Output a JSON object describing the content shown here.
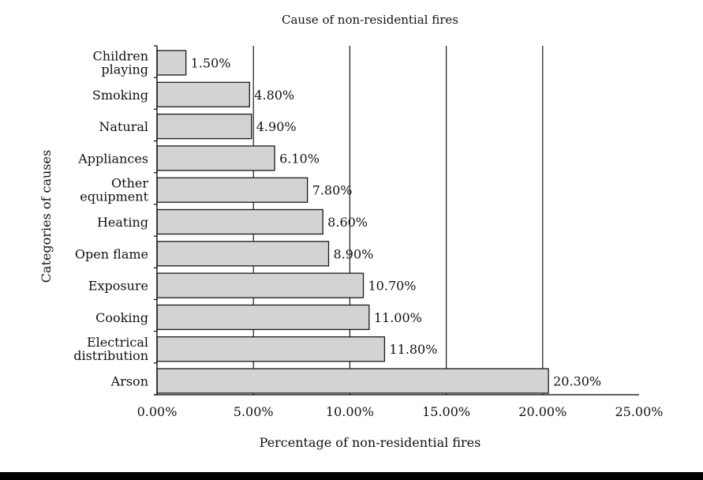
{
  "chart_data": {
    "type": "bar",
    "orientation": "horizontal",
    "title": "Cause of non-residential fires",
    "xlabel": "Percentage of non-residential fires",
    "ylabel": "Categories of causes",
    "categories": [
      [
        "Children",
        "playing"
      ],
      [
        "Smoking"
      ],
      [
        "Natural"
      ],
      [
        "Appliances"
      ],
      [
        "Other",
        "equipment"
      ],
      [
        "Heating"
      ],
      [
        "Open flame"
      ],
      [
        "Exposure"
      ],
      [
        "Cooking"
      ],
      [
        "Electrical",
        "distribution"
      ],
      [
        "Arson"
      ]
    ],
    "values": [
      1.5,
      4.8,
      4.9,
      6.1,
      7.8,
      8.6,
      8.9,
      10.7,
      11.0,
      11.8,
      20.3
    ],
    "value_labels": [
      "1.50%",
      "4.80%",
      "4.90%",
      "6.10%",
      "7.80%",
      "8.60%",
      "8.90%",
      "10.70%",
      "11.00%",
      "11.80%",
      "20.30%"
    ],
    "xlim": [
      0,
      25
    ],
    "xticks": [
      0,
      5,
      10,
      15,
      20,
      25
    ],
    "xtick_labels": [
      "0.00%",
      "5.00%",
      "10.00%",
      "15.00%",
      "20.00%",
      "25.00%"
    ],
    "grid": "vertical",
    "legend": "none",
    "colors": {
      "bar_fill": "#d3d3d3",
      "bar_stroke": "#1a1a1a",
      "grid": "#1a1a1a"
    }
  }
}
